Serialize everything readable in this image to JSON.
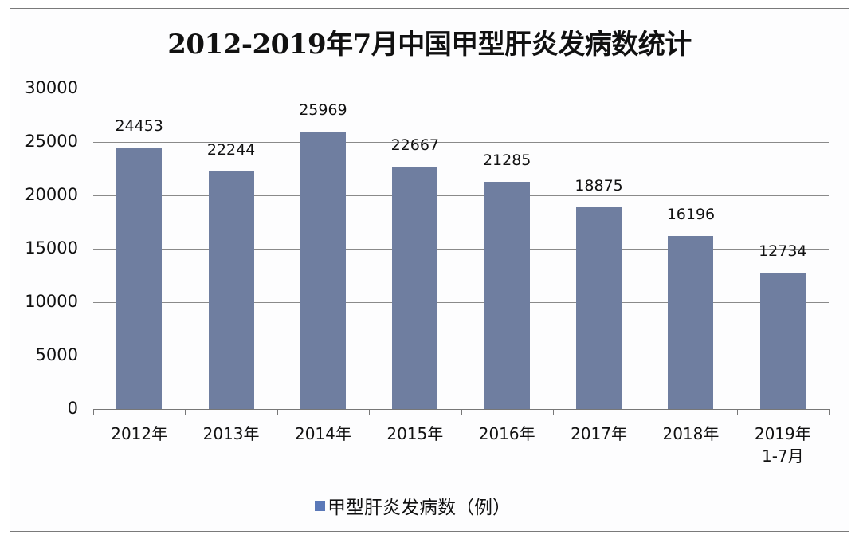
{
  "chart_data": {
    "type": "bar",
    "title": "2012-2019年7月中国甲型肝炎发病数统计",
    "categories": [
      "2012年",
      "2013年",
      "2014年",
      "2015年",
      "2016年",
      "2017年",
      "2018年",
      "2019年\n1-7月"
    ],
    "category_lines": [
      [
        "2012年"
      ],
      [
        "2013年"
      ],
      [
        "2014年"
      ],
      [
        "2015年"
      ],
      [
        "2016年"
      ],
      [
        "2017年"
      ],
      [
        "2018年"
      ],
      [
        "2019年",
        "1-7月"
      ]
    ],
    "series": [
      {
        "name": "甲型肝炎发病数（例）",
        "values": [
          24453,
          22244,
          25969,
          22667,
          21285,
          18875,
          16196,
          12734
        ],
        "color": "#6f7ea0"
      }
    ],
    "values": [
      24453,
      22244,
      25969,
      22667,
      21285,
      18875,
      16196,
      12734
    ],
    "data_labels": [
      "24453",
      "22244",
      "25969",
      "22667",
      "21285",
      "18875",
      "16196",
      "12734"
    ],
    "xlabel": "",
    "ylabel": "",
    "ylim": [
      0,
      30000
    ],
    "yticks": [
      0,
      5000,
      10000,
      15000,
      20000,
      25000,
      30000
    ],
    "ytick_labels": [
      "0",
      "5000",
      "10000",
      "15000",
      "20000",
      "25000",
      "30000"
    ],
    "grid": true,
    "legend_position": "bottom",
    "legend": [
      "甲型肝炎发病数（例）"
    ]
  },
  "colors": {
    "bar": "#6f7ea0",
    "legend_swatch": "#5a78b8",
    "grid": "#8a8a8a"
  }
}
